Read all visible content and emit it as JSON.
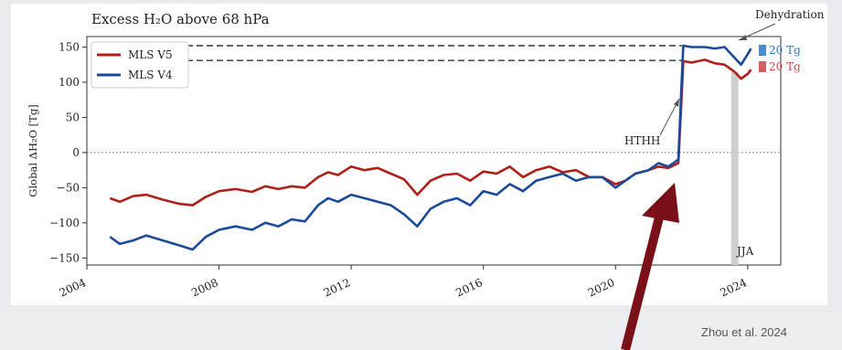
{
  "credit": "Zhou et al. 2024",
  "colors": {
    "v5": "#b02018",
    "v4": "#1b4a9a",
    "arrow": "#7a1018",
    "zero_line": "#666666",
    "jja_band": "#cfcfcf"
  },
  "chart_data": {
    "type": "line",
    "title": "Excess H₂O above 68 hPa",
    "xlabel": "",
    "ylabel": "Global ΔH₂O [Tg]",
    "xlim": [
      2004,
      2025
    ],
    "ylim": [
      -160,
      165
    ],
    "xticks": [
      2004,
      2008,
      2012,
      2016,
      2020,
      2024
    ],
    "yticks": [
      150,
      100,
      50,
      0,
      -50,
      -100,
      -150
    ],
    "grid": false,
    "legend_position": "top-left",
    "series": [
      {
        "name": "MLS V5",
        "color": "#b02018",
        "x": [
          2004.7,
          2005.0,
          2005.4,
          2005.8,
          2006.3,
          2006.8,
          2007.2,
          2007.6,
          2008.0,
          2008.5,
          2009.0,
          2009.4,
          2009.8,
          2010.2,
          2010.6,
          2011.0,
          2011.3,
          2011.6,
          2012.0,
          2012.4,
          2012.8,
          2013.2,
          2013.6,
          2014.0,
          2014.4,
          2014.8,
          2015.2,
          2015.6,
          2016.0,
          2016.4,
          2016.8,
          2017.2,
          2017.6,
          2018.0,
          2018.4,
          2018.8,
          2019.2,
          2019.6,
          2020.0,
          2020.3,
          2020.6,
          2021.0,
          2021.3,
          2021.6,
          2021.9,
          2022.0,
          2022.05,
          2022.3,
          2022.7,
          2023.0,
          2023.3,
          2023.6,
          2023.8,
          2024.0,
          2024.1
        ],
        "y": [
          -65,
          -70,
          -62,
          -60,
          -67,
          -73,
          -75,
          -63,
          -55,
          -52,
          -56,
          -48,
          -52,
          -48,
          -50,
          -35,
          -28,
          -32,
          -20,
          -25,
          -22,
          -30,
          -38,
          -60,
          -40,
          -32,
          -30,
          -40,
          -27,
          -30,
          -20,
          -35,
          -25,
          -20,
          -28,
          -25,
          -35,
          -35,
          -45,
          -40,
          -30,
          -25,
          -20,
          -22,
          -15,
          80,
          130,
          128,
          132,
          127,
          125,
          115,
          105,
          112,
          118
        ]
      },
      {
        "name": "MLS V4",
        "color": "#1b4a9a",
        "x": [
          2004.7,
          2005.0,
          2005.4,
          2005.8,
          2006.3,
          2006.8,
          2007.2,
          2007.6,
          2008.0,
          2008.5,
          2009.0,
          2009.4,
          2009.8,
          2010.2,
          2010.6,
          2011.0,
          2011.3,
          2011.6,
          2012.0,
          2012.4,
          2012.8,
          2013.2,
          2013.6,
          2014.0,
          2014.4,
          2014.8,
          2015.2,
          2015.6,
          2016.0,
          2016.4,
          2016.8,
          2017.2,
          2017.6,
          2018.0,
          2018.4,
          2018.8,
          2019.2,
          2019.6,
          2020.0,
          2020.3,
          2020.6,
          2021.0,
          2021.3,
          2021.6,
          2021.9,
          2022.0,
          2022.05,
          2022.3,
          2022.7,
          2023.0,
          2023.3,
          2023.6,
          2023.8,
          2024.0,
          2024.1
        ],
        "y": [
          -120,
          -130,
          -125,
          -118,
          -125,
          -132,
          -138,
          -120,
          -110,
          -105,
          -110,
          -100,
          -105,
          -95,
          -98,
          -75,
          -65,
          -70,
          -60,
          -65,
          -70,
          -75,
          -88,
          -105,
          -80,
          -70,
          -65,
          -75,
          -55,
          -60,
          -45,
          -55,
          -40,
          -35,
          -30,
          -40,
          -35,
          -35,
          -50,
          -40,
          -30,
          -25,
          -15,
          -20,
          -10,
          100,
          152,
          150,
          150,
          148,
          150,
          135,
          125,
          140,
          148
        ]
      }
    ],
    "reference_lines": [
      {
        "type": "horizontal",
        "y": 0,
        "style": "dotted"
      },
      {
        "type": "horizontal",
        "y": 152,
        "style": "dashed"
      },
      {
        "type": "horizontal",
        "y": 131,
        "style": "dashed"
      }
    ],
    "shaded_band": {
      "x_start": 2023.5,
      "x_end": 2023.72,
      "label": "JJA"
    },
    "annotations": [
      {
        "text": "Dehydration",
        "points_to": [
          2023.6,
          150
        ]
      },
      {
        "text": "HTHH",
        "points_to": [
          2022.0,
          95
        ]
      },
      {
        "text": "20 Tg",
        "color": "#2f78b8"
      },
      {
        "text": "20 Tg",
        "color": "#c94a4a"
      }
    ]
  }
}
